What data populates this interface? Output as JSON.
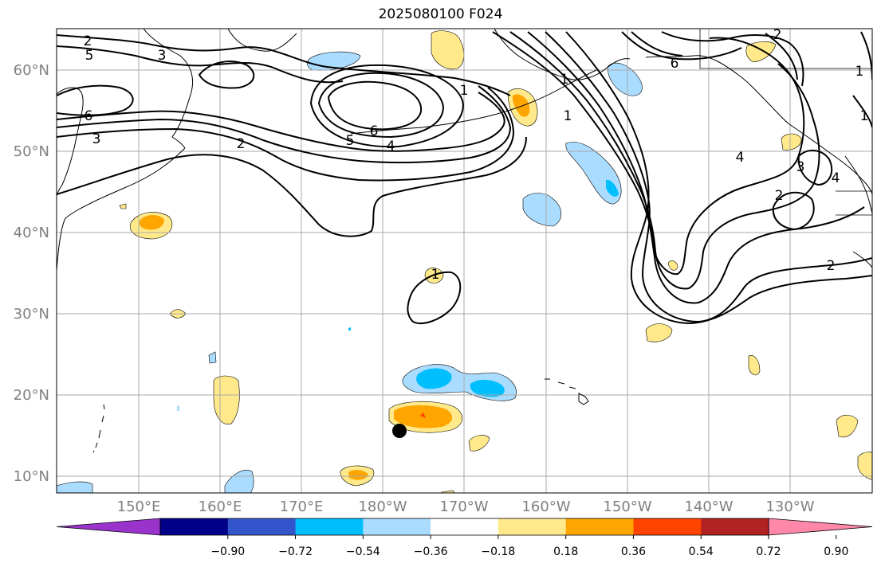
{
  "title": "2025080100 F024",
  "colors": {
    "grid": "#aaaaaa",
    "tick_label": "#808080",
    "coast": "#000000",
    "contour": "#000000",
    "marker": "#000000"
  },
  "lat_labels": [
    "60°N",
    "50°N",
    "40°N",
    "30°N",
    "20°N",
    "10°N"
  ],
  "lon_labels": [
    "150°E",
    "160°E",
    "170°E",
    "180°W",
    "170°W",
    "160°W",
    "150°W",
    "140°W",
    "130°W"
  ],
  "colorbar": {
    "colors": [
      "#9933cc",
      "#000088",
      "#3355cc",
      "#00bfff",
      "#aadcff",
      "#ffffff",
      "#ffe98a",
      "#ffa500",
      "#ff4400",
      "#b22222",
      "#ff88aa"
    ],
    "ticks": [
      "−0.90",
      "−0.72",
      "−0.54",
      "−0.36",
      "−0.18",
      "0.18",
      "0.36",
      "0.54",
      "0.72",
      "0.90"
    ]
  },
  "contour_labels": [
    "2",
    "5",
    "3",
    "6",
    "3",
    "2",
    "1",
    "5",
    "6",
    "4",
    "1",
    "1",
    "4",
    "6",
    "2",
    "1",
    "3",
    "4",
    "1",
    "2",
    "2",
    "1"
  ]
}
